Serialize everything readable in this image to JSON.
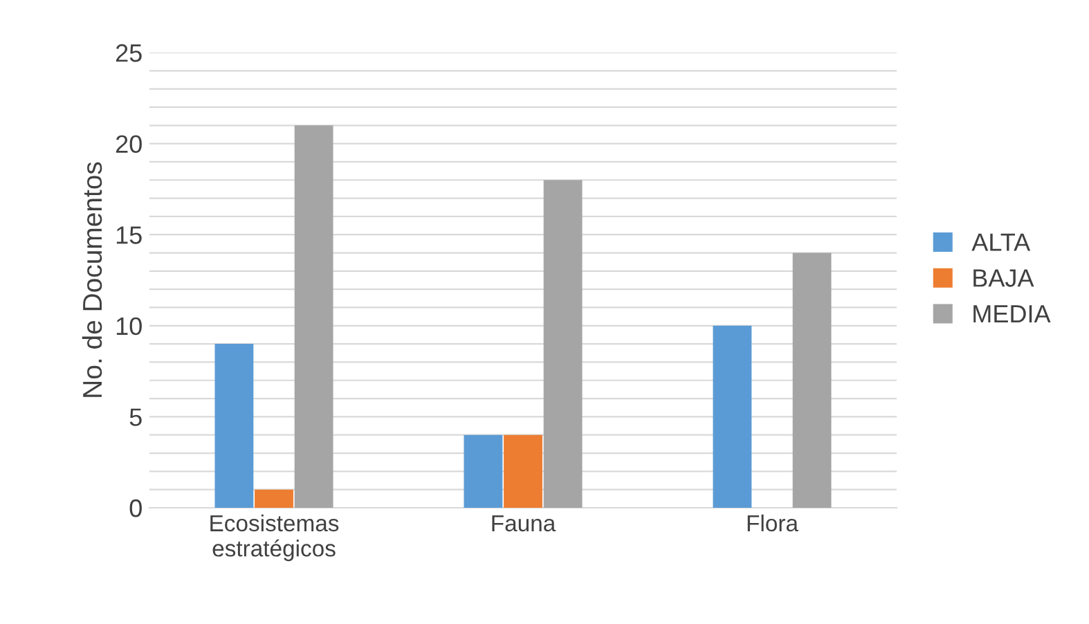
{
  "chart_data": {
    "type": "bar",
    "ylabel": "No. de Documentos",
    "categories": [
      "Ecosistemas\nestratégicos",
      "Fauna",
      "Flora"
    ],
    "series": [
      {
        "name": "ALTA",
        "color": "#5b9bd5",
        "values": [
          9,
          4,
          10
        ]
      },
      {
        "name": "BAJA",
        "color": "#ed7d31",
        "values": [
          1,
          4,
          0
        ]
      },
      {
        "name": "MEDIA",
        "color": "#a5a5a5",
        "values": [
          21,
          18,
          14
        ]
      }
    ],
    "ylim": [
      0,
      25
    ],
    "yticks": [
      0,
      {
        "value": 1,
        "label": null
      },
      {
        "value": 2,
        "label": null
      },
      {
        "value": 3,
        "label": null
      },
      {
        "value": 4,
        "label": null
      },
      5,
      {
        "value": 6,
        "label": null
      },
      {
        "value": 7,
        "label": null
      },
      {
        "value": 8,
        "label": null
      },
      {
        "value": 9,
        "label": null
      },
      10,
      {
        "value": 11,
        "label": null
      },
      {
        "value": 12,
        "label": null
      },
      {
        "value": 13,
        "label": null
      },
      {
        "value": 14,
        "label": null
      },
      15,
      {
        "value": 16,
        "label": null
      },
      {
        "value": 17,
        "label": null
      },
      {
        "value": 18,
        "label": null
      },
      {
        "value": 19,
        "label": null
      },
      20,
      {
        "value": 21,
        "label": null
      },
      {
        "value": 22,
        "label": null
      },
      {
        "value": 23,
        "label": null
      },
      {
        "value": 24,
        "label": null
      },
      25
    ],
    "grid": "y",
    "legend": "right"
  }
}
